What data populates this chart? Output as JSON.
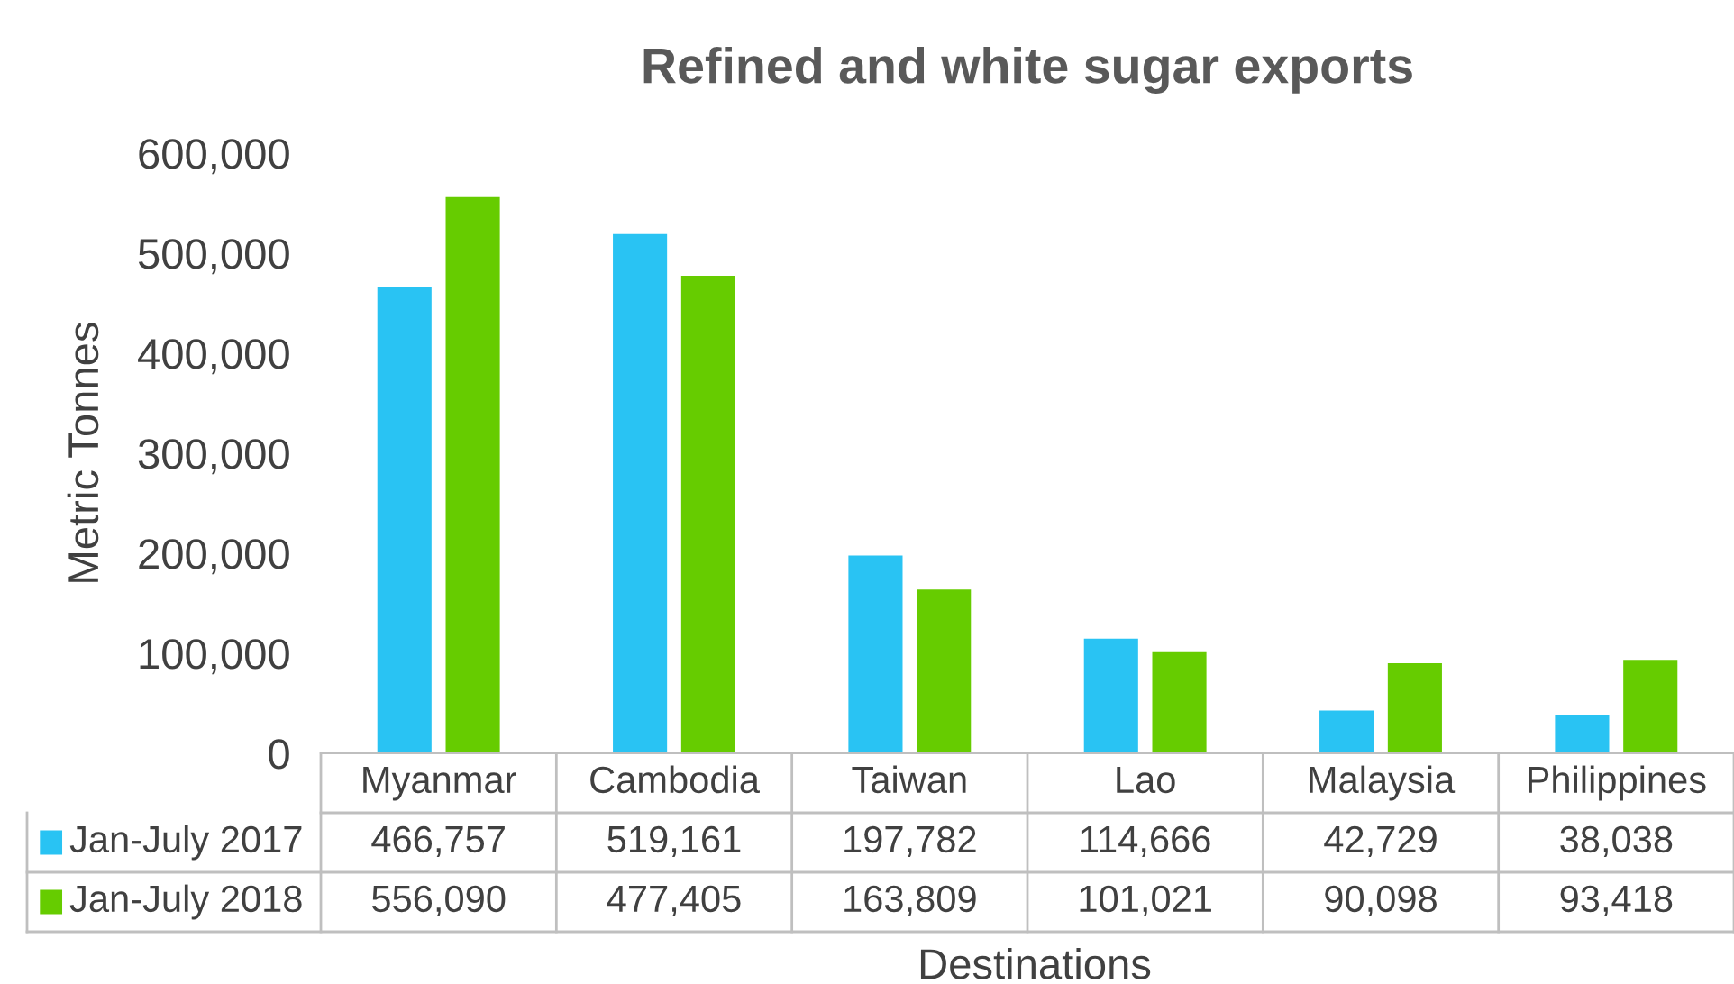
{
  "chart_data": {
    "type": "bar",
    "title": "Refined and white sugar exports",
    "xlabel": "Destinations",
    "ylabel": "Metric Tonnes",
    "categories": [
      "Myanmar",
      "Cambodia",
      "Taiwan",
      "Lao",
      "Malaysia",
      "Philippines"
    ],
    "series": [
      {
        "name": "Jan-July 2017",
        "color": "#29c3f3",
        "values": [
          466757,
          519161,
          197782,
          114666,
          42729,
          38038
        ],
        "value_labels": [
          "466,757",
          "519,161",
          "197,782",
          "114,666",
          "42,729",
          "38,038"
        ]
      },
      {
        "name": "Jan-July 2018",
        "color": "#66cc00",
        "values": [
          556090,
          477405,
          163809,
          101021,
          90098,
          93418
        ],
        "value_labels": [
          "556,090",
          "477,405",
          "163,809",
          "101,021",
          "90,098",
          "93,418"
        ]
      }
    ],
    "ylim": [
      0,
      600000
    ],
    "yticks": [
      0,
      {
        "value": 100000,
        "label": "100,000"
      },
      {
        "value": 200000,
        "label": "200,000"
      },
      {
        "value": 300000,
        "label": "300,000"
      },
      {
        "value": 400000,
        "label": "400,000"
      },
      {
        "value": 500000,
        "label": "500,000"
      },
      {
        "value": 600000,
        "label": "600,000"
      }
    ],
    "grid": false,
    "legend": "bottom"
  }
}
